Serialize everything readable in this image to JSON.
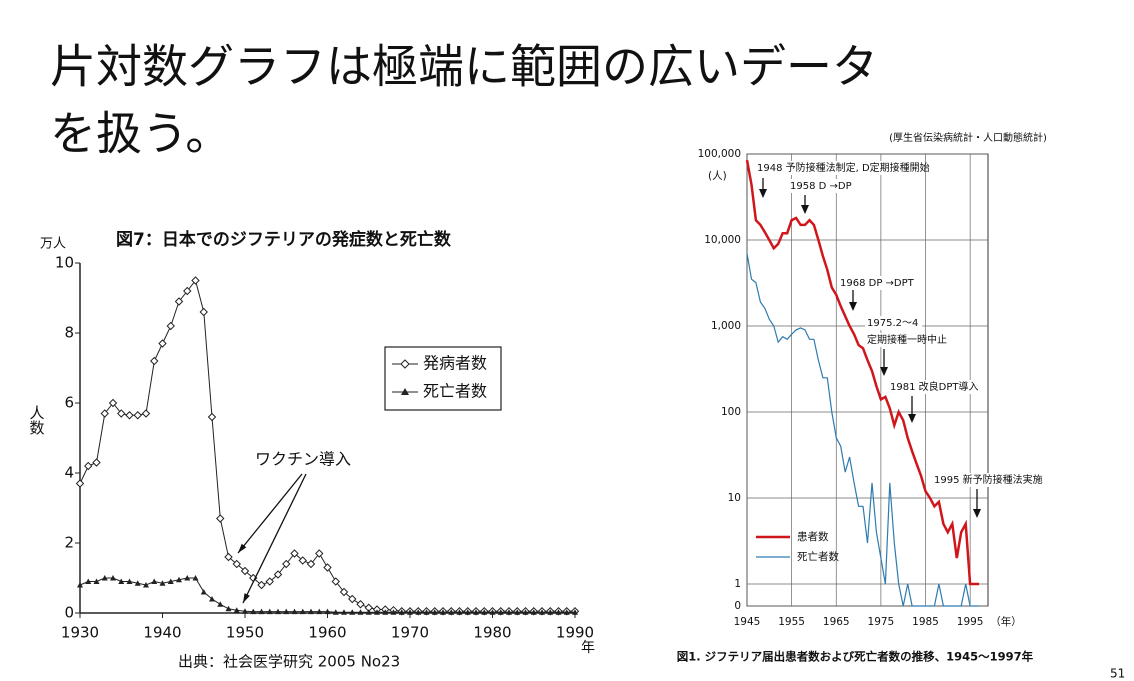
{
  "slide": {
    "title_lines": [
      "片対数グラフは極端に範囲の広いデータ",
      "を扱う。"
    ],
    "page_number": "51"
  },
  "chart_data": [
    {
      "type": "line",
      "title": "図7：日本でのジフテリアの発症数と死亡数",
      "y_unit": "万人",
      "ylabel": "人数",
      "xlabel": "年",
      "annotation": "ワクチン導入",
      "source": "出典：社会医学研究 2005 No23",
      "legend": "right",
      "log": false,
      "grid": false,
      "x": [
        1930,
        1931,
        1932,
        1933,
        1934,
        1935,
        1936,
        1937,
        1938,
        1939,
        1940,
        1941,
        1942,
        1943,
        1944,
        1945,
        1946,
        1947,
        1948,
        1949,
        1950,
        1951,
        1952,
        1953,
        1954,
        1955,
        1956,
        1957,
        1958,
        1959,
        1960,
        1961,
        1962,
        1963,
        1964,
        1965,
        1966,
        1967,
        1968,
        1969,
        1970,
        1971,
        1972,
        1973,
        1974,
        1975,
        1976,
        1977,
        1978,
        1979,
        1980,
        1981,
        1982,
        1983,
        1984,
        1985,
        1986,
        1987,
        1988,
        1989,
        1990
      ],
      "series": [
        {
          "name": "発病者数",
          "color": "#222222",
          "marker": "diamond",
          "values": [
            3.7,
            4.2,
            4.3,
            5.7,
            6.0,
            5.7,
            5.65,
            5.65,
            5.7,
            7.2,
            7.7,
            8.2,
            8.9,
            9.2,
            9.5,
            8.6,
            5.6,
            2.7,
            1.6,
            1.4,
            1.2,
            1.0,
            0.8,
            0.9,
            1.1,
            1.4,
            1.7,
            1.5,
            1.4,
            1.7,
            1.3,
            0.9,
            0.6,
            0.4,
            0.25,
            0.15,
            0.1,
            0.1,
            0.08,
            0.05,
            0.05,
            0.05,
            0.05,
            0.05,
            0.05,
            0.05,
            0.05,
            0.05,
            0.05,
            0.05,
            0.05,
            0.05,
            0.05,
            0.05,
            0.05,
            0.05,
            0.05,
            0.05,
            0.05,
            0.05,
            0.05
          ]
        },
        {
          "name": "死亡者数",
          "color": "#222222",
          "marker": "triangle",
          "values": [
            0.8,
            0.9,
            0.9,
            1.0,
            1.0,
            0.9,
            0.9,
            0.85,
            0.8,
            0.9,
            0.85,
            0.9,
            0.95,
            1.0,
            1.0,
            0.6,
            0.4,
            0.25,
            0.12,
            0.08,
            0.05,
            0.04,
            0.04,
            0.04,
            0.04,
            0.04,
            0.04,
            0.04,
            0.04,
            0.04,
            0.04,
            0.02,
            0.02,
            0.02,
            0.02,
            0.02,
            0.02,
            0.02,
            0.02,
            0.02,
            0.02,
            0.02,
            0.02,
            0.02,
            0.02,
            0.02,
            0.02,
            0.02,
            0.02,
            0.02,
            0.02,
            0.02,
            0.02,
            0.02,
            0.02,
            0.02,
            0.02,
            0.02,
            0.02,
            0.02,
            0.02
          ]
        }
      ],
      "xlim": [
        1930,
        1990
      ],
      "xticks": [
        1930,
        1940,
        1950,
        1960,
        1970,
        1980,
        1990
      ],
      "ylim": [
        0,
        10
      ],
      "yticks": [
        0,
        2,
        4,
        6,
        8,
        10
      ]
    },
    {
      "type": "line",
      "source": "(厚生省伝染病統計・人口動態統計)",
      "y_unit": "(人)",
      "xlabel": "（年）",
      "caption": "図1. ジフテリア届出患者数および死亡者数の推移、1945〜1997年",
      "legend": "lower left",
      "log": true,
      "grid": true,
      "annotations": [
        "1948 予防接種法制定, D定期接種開始",
        "1958 D →DP",
        "1968 DP →DPT",
        "1975.2〜4",
        "定期接種一時中止",
        "1981 改良DPT導入",
        "1995 新予防接種法実施"
      ],
      "x": [
        1945,
        1946,
        1947,
        1948,
        1949,
        1950,
        1951,
        1952,
        1953,
        1954,
        1955,
        1956,
        1957,
        1958,
        1959,
        1960,
        1961,
        1962,
        1963,
        1964,
        1965,
        1966,
        1967,
        1968,
        1969,
        1970,
        1971,
        1972,
        1973,
        1974,
        1975,
        1976,
        1977,
        1978,
        1979,
        1980,
        1981,
        1982,
        1983,
        1984,
        1985,
        1986,
        1987,
        1988,
        1989,
        1990,
        1991,
        1992,
        1993,
        1994,
        1995,
        1996,
        1997
      ],
      "series": [
        {
          "name": "患者数",
          "color": "#d0161b",
          "width": 2.5,
          "values": [
            85000,
            44000,
            17000,
            15000,
            12300,
            10000,
            8000,
            9000,
            12000,
            12000,
            17000,
            18000,
            15000,
            15000,
            17000,
            15000,
            10000,
            6500,
            4500,
            2800,
            2300,
            1700,
            1300,
            1000,
            800,
            600,
            550,
            400,
            300,
            200,
            140,
            150,
            110,
            70,
            100,
            80,
            50,
            35,
            25,
            18,
            12,
            10,
            8,
            9,
            5,
            4,
            5,
            2,
            4,
            5,
            1,
            1,
            1
          ]
        },
        {
          "name": "死亡者数",
          "color": "#2e7bb0",
          "width": 1.2,
          "values": [
            7000,
            3500,
            3200,
            1900,
            1600,
            1200,
            1000,
            650,
            750,
            700,
            800,
            900,
            950,
            900,
            700,
            700,
            400,
            250,
            250,
            100,
            50,
            40,
            20,
            30,
            15,
            8,
            8,
            3,
            15,
            4,
            2,
            1,
            15,
            3,
            1,
            0,
            1,
            0,
            0,
            0,
            0,
            0,
            0,
            1,
            0,
            0,
            0,
            0,
            0,
            1,
            0,
            0,
            0
          ]
        }
      ],
      "xlim": [
        1945,
        1999
      ],
      "xticks": [
        1945,
        1955,
        1965,
        1975,
        1985,
        1995
      ],
      "ylim": [
        0,
        100000
      ],
      "yticks": [
        0,
        1,
        10,
        100,
        {
          "value": 1000,
          "label": "1,000"
        },
        {
          "value": 10000,
          "label": "10,000"
        },
        {
          "value": 100000,
          "label": "100,000"
        }
      ]
    }
  ]
}
